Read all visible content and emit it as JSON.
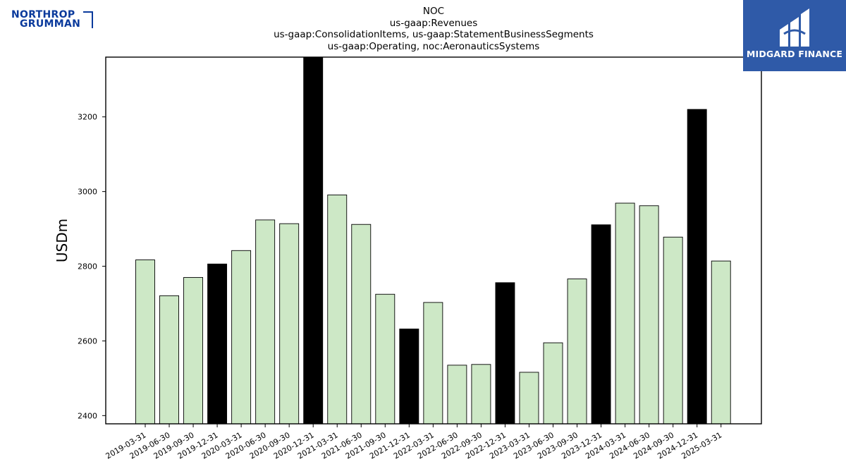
{
  "logo_left": {
    "line1": "NORTHROP",
    "line2": "GRUMMAN",
    "color": "#0a3a9c"
  },
  "logo_right": {
    "brand": "MIDGARD FINANCE",
    "background": "#2f5aa8"
  },
  "chart_data": {
    "type": "bar",
    "title_lines": [
      "NOC",
      "us-gaap:Revenues",
      "us-gaap:ConsolidationItems, us-gaap:StatementBusinessSegments",
      "us-gaap:Operating, noc:AeronauticsSystems"
    ],
    "ylabel": "USDm",
    "xlabel": "",
    "ylim": [
      2378,
      3360
    ],
    "yticks": [
      2400,
      2600,
      2800,
      3000,
      3200
    ],
    "categories": [
      "2019-03-31",
      "2019-06-30",
      "2019-09-30",
      "2019-12-31",
      "2020-03-31",
      "2020-06-30",
      "2020-09-30",
      "2020-12-31",
      "2021-03-31",
      "2021-06-30",
      "2021-09-30",
      "2021-12-31",
      "2022-03-31",
      "2022-06-30",
      "2022-09-30",
      "2022-12-31",
      "2023-03-31",
      "2023-06-30",
      "2023-09-30",
      "2023-12-31",
      "2024-03-31",
      "2024-06-30",
      "2024-09-30",
      "2024-12-31",
      "2025-03-31"
    ],
    "values": [
      2817,
      2721,
      2770,
      2806,
      2842,
      2924,
      2914,
      3390,
      2991,
      2912,
      2725,
      2632,
      2703,
      2535,
      2537,
      2756,
      2516,
      2595,
      2766,
      2911,
      2969,
      2962,
      2878,
      3220,
      2814
    ],
    "highlight": [
      false,
      false,
      false,
      true,
      false,
      false,
      false,
      true,
      false,
      false,
      false,
      true,
      false,
      false,
      false,
      true,
      false,
      false,
      false,
      true,
      false,
      false,
      false,
      true,
      false
    ],
    "colors": {
      "regular": "#cde8c6",
      "highlight": "#000000",
      "edge": "#000000"
    },
    "grid": false,
    "legend": "none"
  }
}
